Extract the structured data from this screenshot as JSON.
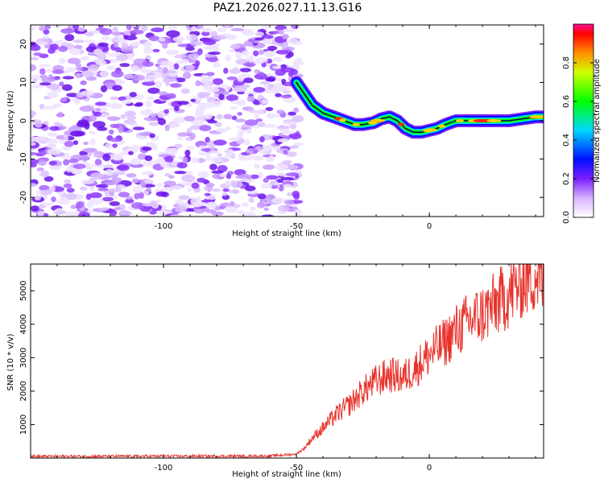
{
  "title": "PAZ1.2026.027.11.13.G16",
  "chart_data": [
    {
      "type": "heatmap",
      "name": "spectrogram",
      "xlabel": "Height of straight line (km)",
      "ylabel": "Frequency (Hz)",
      "xlim": [
        -150,
        43
      ],
      "ylim": [
        -25,
        25
      ],
      "xticks": [
        -100,
        -50,
        0
      ],
      "yticks": [
        -20,
        -10,
        0,
        10,
        20
      ],
      "noise_region_x": [
        -150,
        -49
      ],
      "signal_ridge": {
        "x": [
          -50,
          -47,
          -44,
          -40,
          -36,
          -32,
          -28,
          -25,
          -21,
          -18,
          -15,
          -12,
          -9,
          -6,
          -3,
          0,
          3,
          6,
          10,
          15,
          20,
          25,
          30,
          35,
          40,
          43
        ],
        "freq": [
          10,
          7,
          4,
          2,
          1,
          0,
          -1,
          -1,
          -0.5,
          0.5,
          1,
          0,
          -2,
          -3,
          -3,
          -2.5,
          -2,
          -1,
          0,
          0,
          0,
          0,
          0,
          0.5,
          1,
          1
        ]
      },
      "colorbar": {
        "label": "Normalized spectral amplitude",
        "range": [
          0,
          1
        ],
        "ticks": [
          "0.0",
          "0.2",
          "0.4",
          "0.6",
          "0.8"
        ]
      }
    },
    {
      "type": "line",
      "name": "snr",
      "xlabel": "Height of straight line (km)",
      "ylabel": "SNR (10 * v/v)",
      "xlim": [
        -150,
        43
      ],
      "ylim": [
        0,
        5800
      ],
      "xticks": [
        -100,
        -50,
        0
      ],
      "yticks": [
        1000,
        2000,
        3000,
        4000,
        5000
      ],
      "color": "#e8322b",
      "trend": {
        "x": [
          -150,
          -60,
          -50,
          -47,
          -44,
          -40,
          -35,
          -30,
          -25,
          -20,
          -15,
          -10,
          -5,
          0,
          5,
          10,
          15,
          20,
          25,
          30,
          35,
          40,
          43
        ],
        "snr": [
          50,
          60,
          120,
          300,
          600,
          900,
          1300,
          1600,
          2000,
          2300,
          2500,
          2400,
          2700,
          3100,
          3400,
          3800,
          4100,
          4300,
          4600,
          4900,
          5300,
          5500,
          5200
        ]
      }
    }
  ]
}
